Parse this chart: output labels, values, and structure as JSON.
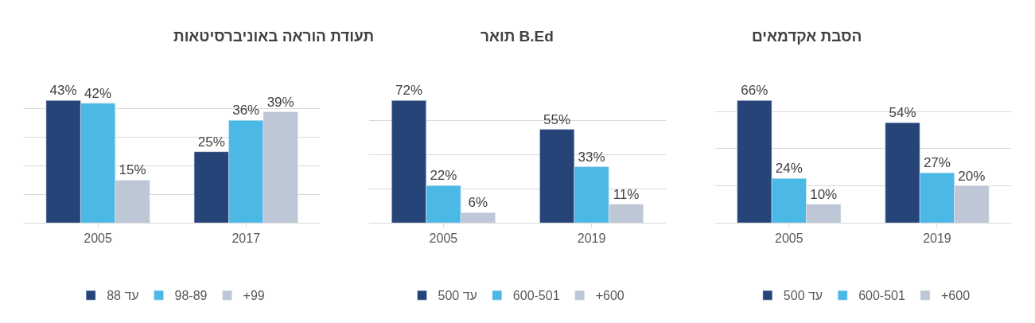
{
  "chart_data": [
    {
      "type": "bar",
      "title": "תעודת הוראה באוניברסיטאות",
      "categories": [
        "2005",
        "2017"
      ],
      "series": [
        {
          "name": "עד 88",
          "color": "#264478",
          "values": [
            43,
            25
          ],
          "value_labels": [
            "43%",
            "25%"
          ]
        },
        {
          "name": "98-89",
          "color": "#4bb8e6",
          "values": [
            42,
            36
          ],
          "value_labels": [
            "42%",
            "36%"
          ]
        },
        {
          "name": "+99",
          "color": "#bdc7d6",
          "values": [
            15,
            39
          ],
          "value_labels": [
            "15%",
            "39%"
          ]
        }
      ],
      "grid": "y",
      "tick_labels": "x",
      "legend": "bottom"
    },
    {
      "type": "bar",
      "title": "תואר B.Ed",
      "categories": [
        "2005",
        "2019"
      ],
      "series": [
        {
          "name": "עד 500",
          "color": "#264478",
          "values": [
            72,
            55
          ],
          "value_labels": [
            "72%",
            "55%"
          ]
        },
        {
          "name": "600-501",
          "color": "#4bb8e6",
          "values": [
            22,
            33
          ],
          "value_labels": [
            "22%",
            "33%"
          ]
        },
        {
          "name": "+600",
          "color": "#bdc7d6",
          "values": [
            6,
            11
          ],
          "value_labels": [
            "6%",
            "11%"
          ]
        }
      ],
      "grid": "y",
      "tick_labels": "x",
      "legend": "bottom"
    },
    {
      "type": "bar",
      "title": "הסבת אקדמאים",
      "categories": [
        "2005",
        "2019"
      ],
      "series": [
        {
          "name": "עד 500",
          "color": "#264478",
          "values": [
            66,
            54
          ],
          "value_labels": [
            "66%",
            "54%"
          ]
        },
        {
          "name": "600-501",
          "color": "#4bb8e6",
          "values": [
            24,
            27
          ],
          "value_labels": [
            "24%",
            "27%"
          ]
        },
        {
          "name": "+600",
          "color": "#bdc7d6",
          "values": [
            10,
            20
          ],
          "value_labels": [
            "10%",
            "20%"
          ]
        }
      ],
      "grid": "y",
      "tick_labels": "x",
      "legend": "bottom"
    }
  ]
}
